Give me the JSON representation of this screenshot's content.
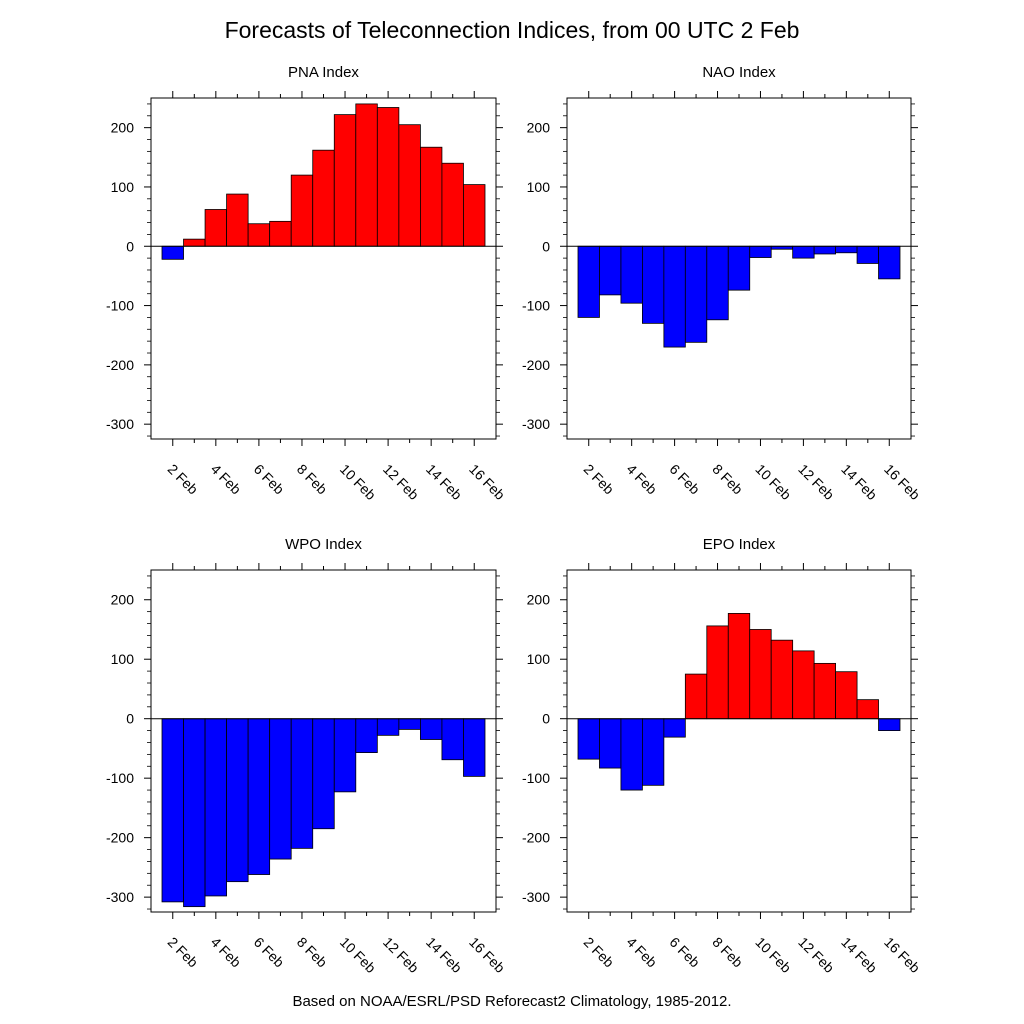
{
  "title": "Forecasts of Teleconnection Indices, from 00 UTC 2 Feb",
  "footer": "Based on NOAA/ESRL/PSD Reforecast2 Climatology, 1985-2012.",
  "colors": {
    "positive": "#ff0000",
    "negative": "#0000ff",
    "outline": "#000000"
  },
  "chart_data": [
    {
      "type": "bar",
      "title": "PNA Index",
      "categories": [
        "2 Feb",
        "3 Feb",
        "4 Feb",
        "5 Feb",
        "6 Feb",
        "7 Feb",
        "8 Feb",
        "9 Feb",
        "10 Feb",
        "11 Feb",
        "12 Feb",
        "13 Feb",
        "14 Feb",
        "15 Feb",
        "16 Feb"
      ],
      "values": [
        -22,
        12,
        62,
        88,
        38,
        42,
        120,
        162,
        222,
        240,
        234,
        205,
        167,
        140,
        104
      ],
      "ylim": [
        -325,
        250
      ],
      "yticks": [
        -300,
        -200,
        -100,
        0,
        100,
        200
      ],
      "xtick_labels": [
        "2 Feb",
        "4 Feb",
        "6 Feb",
        "8 Feb",
        "10 Feb",
        "12 Feb",
        "14 Feb",
        "16 Feb"
      ],
      "xlabel": "",
      "ylabel": "",
      "grid": false,
      "legend": "none"
    },
    {
      "type": "bar",
      "title": "NAO Index",
      "categories": [
        "2 Feb",
        "3 Feb",
        "4 Feb",
        "5 Feb",
        "6 Feb",
        "7 Feb",
        "8 Feb",
        "9 Feb",
        "10 Feb",
        "11 Feb",
        "12 Feb",
        "13 Feb",
        "14 Feb",
        "15 Feb",
        "16 Feb"
      ],
      "values": [
        -120,
        -82,
        -96,
        -130,
        -170,
        -162,
        -124,
        -74,
        -19,
        -5,
        -20,
        -13,
        -11,
        -29,
        -55
      ],
      "ylim": [
        -325,
        250
      ],
      "yticks": [
        -300,
        -200,
        -100,
        0,
        100,
        200
      ],
      "xtick_labels": [
        "2 Feb",
        "4 Feb",
        "6 Feb",
        "8 Feb",
        "10 Feb",
        "12 Feb",
        "14 Feb",
        "16 Feb"
      ],
      "xlabel": "",
      "ylabel": "",
      "grid": false,
      "legend": "none"
    },
    {
      "type": "bar",
      "title": "WPO Index",
      "categories": [
        "2 Feb",
        "3 Feb",
        "4 Feb",
        "5 Feb",
        "6 Feb",
        "7 Feb",
        "8 Feb",
        "9 Feb",
        "10 Feb",
        "11 Feb",
        "12 Feb",
        "13 Feb",
        "14 Feb",
        "15 Feb",
        "16 Feb"
      ],
      "values": [
        -308,
        -316,
        -298,
        -274,
        -262,
        -236,
        -218,
        -185,
        -123,
        -57,
        -28,
        -18,
        -35,
        -69,
        -97
      ],
      "ylim": [
        -325,
        250
      ],
      "yticks": [
        -300,
        -200,
        -100,
        0,
        100,
        200
      ],
      "xtick_labels": [
        "2 Feb",
        "4 Feb",
        "6 Feb",
        "8 Feb",
        "10 Feb",
        "12 Feb",
        "14 Feb",
        "16 Feb"
      ],
      "xlabel": "",
      "ylabel": "",
      "grid": false,
      "legend": "none"
    },
    {
      "type": "bar",
      "title": "EPO Index",
      "categories": [
        "2 Feb",
        "3 Feb",
        "4 Feb",
        "5 Feb",
        "6 Feb",
        "7 Feb",
        "8 Feb",
        "9 Feb",
        "10 Feb",
        "11 Feb",
        "12 Feb",
        "13 Feb",
        "14 Feb",
        "15 Feb",
        "16 Feb"
      ],
      "values": [
        -68,
        -83,
        -120,
        -112,
        -31,
        75,
        156,
        177,
        150,
        132,
        114,
        93,
        79,
        32,
        -20
      ],
      "ylim": [
        -325,
        250
      ],
      "yticks": [
        -300,
        -200,
        -100,
        0,
        100,
        200
      ],
      "xtick_labels": [
        "2 Feb",
        "4 Feb",
        "6 Feb",
        "8 Feb",
        "10 Feb",
        "12 Feb",
        "14 Feb",
        "16 Feb"
      ],
      "xlabel": "",
      "ylabel": "",
      "grid": false,
      "legend": "none"
    }
  ]
}
